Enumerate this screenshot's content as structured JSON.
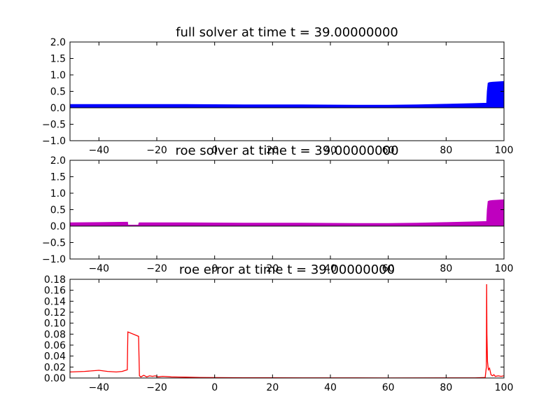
{
  "figure": {
    "background": "#ffffff"
  },
  "chart_data": [
    {
      "type": "area",
      "title": "full solver at time t =    39.00000000",
      "xlabel": "",
      "ylabel": "",
      "xlim": [
        -50,
        100
      ],
      "ylim": [
        -1.0,
        2.0
      ],
      "grid": false,
      "legend": "none",
      "color": "#0000ff",
      "x_ticks": [
        -40,
        -20,
        0,
        20,
        40,
        60,
        80,
        100
      ],
      "x_tick_labels": [
        "−40",
        "−20",
        "0",
        "20",
        "40",
        "60",
        "80",
        "100"
      ],
      "y_ticks": [
        -1.0,
        -0.5,
        0.0,
        0.5,
        1.0,
        1.5,
        2.0
      ],
      "y_tick_labels": [
        "−1.0",
        "−0.5",
        "0.0",
        "0.5",
        "1.0",
        "1.5",
        "2.0"
      ],
      "series": [
        {
          "x": [
            -50,
            -30,
            -10,
            10,
            30,
            50,
            60,
            70,
            80,
            90,
            94.0,
            94.2,
            94.5,
            95,
            96,
            98,
            100
          ],
          "y_upper": [
            0.1,
            0.1,
            0.1,
            0.09,
            0.09,
            0.08,
            0.08,
            0.09,
            0.11,
            0.13,
            0.14,
            0.5,
            0.75,
            0.77,
            0.78,
            0.79,
            0.8
          ],
          "y_lower": [
            0.0,
            0.0,
            0.0,
            0.0,
            0.0,
            0.0,
            0.0,
            0.0,
            0.0,
            0.0,
            0.0,
            0.0,
            0.0,
            0.0,
            0.0,
            0.0,
            0.0
          ]
        }
      ]
    },
    {
      "type": "area",
      "title": "roe solver at time t =    39.00000000",
      "xlabel": "",
      "ylabel": "",
      "xlim": [
        -50,
        100
      ],
      "ylim": [
        -1.0,
        2.0
      ],
      "grid": false,
      "legend": "none",
      "color": "#bf00bf",
      "x_ticks": [
        -40,
        -20,
        0,
        20,
        40,
        60,
        80,
        100
      ],
      "x_tick_labels": [
        "−40",
        "−20",
        "0",
        "20",
        "40",
        "60",
        "80",
        "100"
      ],
      "y_ticks": [
        -1.0,
        -0.5,
        0.0,
        0.5,
        1.0,
        1.5,
        2.0
      ],
      "y_tick_labels": [
        "−1.0",
        "−0.5",
        "0.0",
        "0.5",
        "1.0",
        "1.5",
        "2.0"
      ],
      "series": [
        {
          "x": [
            -50,
            -40,
            -30.1,
            -30.0,
            -26.3,
            -26.2,
            -26.0,
            -10,
            10,
            30,
            50,
            60,
            70,
            80,
            90,
            94.0,
            94.2,
            94.5,
            95,
            96,
            98,
            100
          ],
          "y_upper": [
            0.1,
            0.11,
            0.12,
            0.03,
            0.03,
            0.09,
            0.1,
            0.1,
            0.09,
            0.09,
            0.08,
            0.08,
            0.09,
            0.11,
            0.13,
            0.14,
            0.5,
            0.75,
            0.77,
            0.78,
            0.79,
            0.8
          ],
          "y_lower": [
            0.0,
            0.0,
            0.0,
            0.0,
            0.0,
            0.0,
            0.0,
            0.0,
            0.0,
            0.0,
            0.0,
            0.0,
            0.0,
            0.0,
            0.0,
            0.0,
            0.0,
            0.0,
            0.0,
            0.0,
            0.0,
            0.0
          ]
        }
      ]
    },
    {
      "type": "line",
      "title": "roe error at time t =    39.00000000",
      "xlabel": "",
      "ylabel": "",
      "xlim": [
        -50,
        100
      ],
      "ylim": [
        0.0,
        0.18
      ],
      "grid": false,
      "legend": "none",
      "color": "#ff0000",
      "x_ticks": [
        -40,
        -20,
        0,
        20,
        40,
        60,
        80,
        100
      ],
      "x_tick_labels": [
        "−40",
        "−20",
        "0",
        "20",
        "40",
        "60",
        "80",
        "100"
      ],
      "y_ticks": [
        0.0,
        0.02,
        0.04,
        0.06,
        0.08,
        0.1,
        0.12,
        0.14,
        0.16,
        0.18
      ],
      "y_tick_labels": [
        "0.00",
        "0.02",
        "0.04",
        "0.06",
        "0.08",
        "0.10",
        "0.12",
        "0.14",
        "0.16",
        "0.18"
      ],
      "series": [
        {
          "x": [
            -50,
            -45,
            -40,
            -37,
            -34,
            -32,
            -30.2,
            -30.0,
            -26.3,
            -26.0,
            -25.5,
            -24.5,
            -23.5,
            -22.5,
            -21.5,
            -20.5,
            -19.5,
            -18,
            -15,
            -10,
            -5,
            0,
            10,
            30,
            60,
            90,
            93.5,
            93.9,
            94.0,
            94.1,
            94.3,
            94.6,
            95,
            95.5,
            96,
            96.5,
            97,
            98,
            99,
            100
          ],
          "y": [
            0.011,
            0.012,
            0.014,
            0.012,
            0.011,
            0.012,
            0.015,
            0.084,
            0.076,
            0.004,
            0.002,
            0.005,
            0.002,
            0.004,
            0.003,
            0.004,
            0.002,
            0.003,
            0.002,
            0.0015,
            0.001,
            0.0008,
            0.0005,
            0.0003,
            0.0002,
            0.0003,
            0.001,
            0.02,
            0.171,
            0.08,
            0.03,
            0.015,
            0.018,
            0.006,
            0.004,
            0.006,
            0.003,
            0.004,
            0.003,
            0.004
          ]
        }
      ]
    }
  ]
}
